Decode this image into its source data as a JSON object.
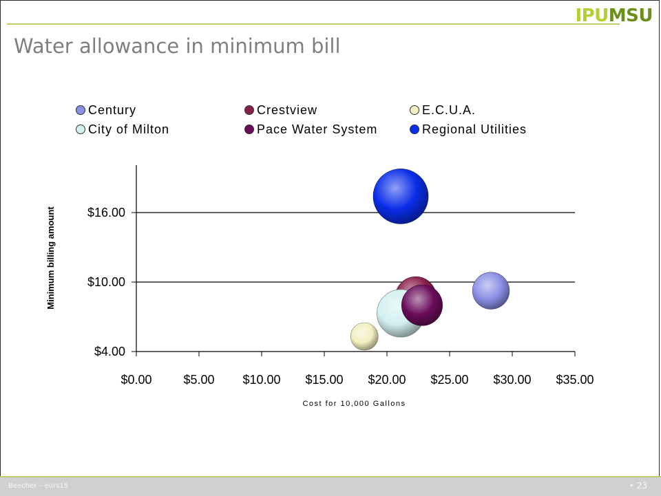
{
  "slide": {
    "title": "Water allowance in minimum bill",
    "logo_part1": "IPU",
    "logo_part2": "MSU",
    "footer_left": "Beecher – eurs15",
    "footer_right": "‣ 23"
  },
  "colors": {
    "accent_green": "#b5cf6c",
    "logo_green_light": "#b5cf2f",
    "logo_green_dark": "#6c8f1a",
    "title_gray": "#7f7f7f"
  },
  "chart_data": {
    "type": "scatter",
    "xlabel": "Cost for 10,000 Gallons",
    "ylabel": "Minimum billing amount",
    "xlim": [
      0,
      35
    ],
    "ylim": [
      4,
      20
    ],
    "xticks": [
      0,
      5,
      10,
      15,
      20,
      25,
      30,
      35
    ],
    "xtick_labels": [
      "$0.00",
      "$5.00",
      "$10.00",
      "$15.00",
      "$20.00",
      "$25.00",
      "$30.00",
      "$35.00"
    ],
    "yticks": [
      4,
      10,
      16
    ],
    "ytick_labels": [
      "$4.00",
      "$10.00",
      "$16.00"
    ],
    "grid": "horizontal",
    "legend_position": "top",
    "series": [
      {
        "name": "Century",
        "x": 28.3,
        "y": 9.25,
        "size": 0.45,
        "color": "#8b8fe6"
      },
      {
        "name": "Crestview",
        "x": 22.3,
        "y": 8.7,
        "size": 0.55,
        "color": "#8b1f4b"
      },
      {
        "name": "E.C.U.A.",
        "x": 18.2,
        "y": 5.3,
        "size": 0.25,
        "color": "#f2efc0"
      },
      {
        "name": "City of Milton",
        "x": 21.1,
        "y": 7.3,
        "size": 0.75,
        "color": "#d2efef"
      },
      {
        "name": "Pace Water System",
        "x": 22.8,
        "y": 8.0,
        "size": 0.55,
        "color": "#6a0c5a"
      },
      {
        "name": "Regional Utilities",
        "x": 21.1,
        "y": 17.4,
        "size": 1.0,
        "color": "#0a2de8"
      }
    ]
  }
}
